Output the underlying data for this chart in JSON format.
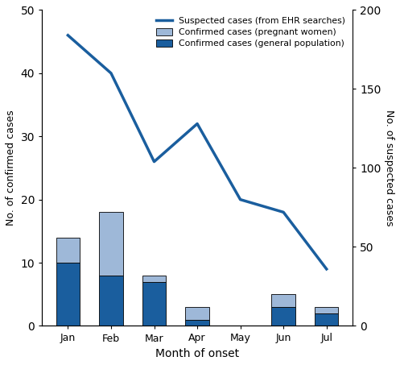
{
  "months": [
    "Jan",
    "Feb",
    "Mar",
    "Apr",
    "May",
    "Jun",
    "Jul"
  ],
  "confirmed_general": [
    10,
    8,
    7,
    1,
    0,
    3,
    2
  ],
  "confirmed_pregnant": [
    4,
    10,
    1,
    2,
    0,
    2,
    1
  ],
  "suspected_cases": [
    184,
    160,
    104,
    128,
    80,
    72,
    36
  ],
  "color_general": "#1a5e9e",
  "color_pregnant": "#9eb8d8",
  "color_line": "#1a5e9e",
  "left_ylim": [
    0,
    50
  ],
  "right_ylim": [
    0,
    200
  ],
  "left_yticks": [
    0,
    10,
    20,
    30,
    40,
    50
  ],
  "right_yticks": [
    0,
    50,
    100,
    150,
    200
  ],
  "left_ylabel": "No. of confirmed cases",
  "right_ylabel": "No. of suspected cases",
  "xlabel": "Month of onset",
  "legend_line": "Suspected cases (from EHR searches)",
  "legend_pregnant": "Confirmed cases (pregnant women)",
  "legend_general": "Confirmed cases (general population)"
}
